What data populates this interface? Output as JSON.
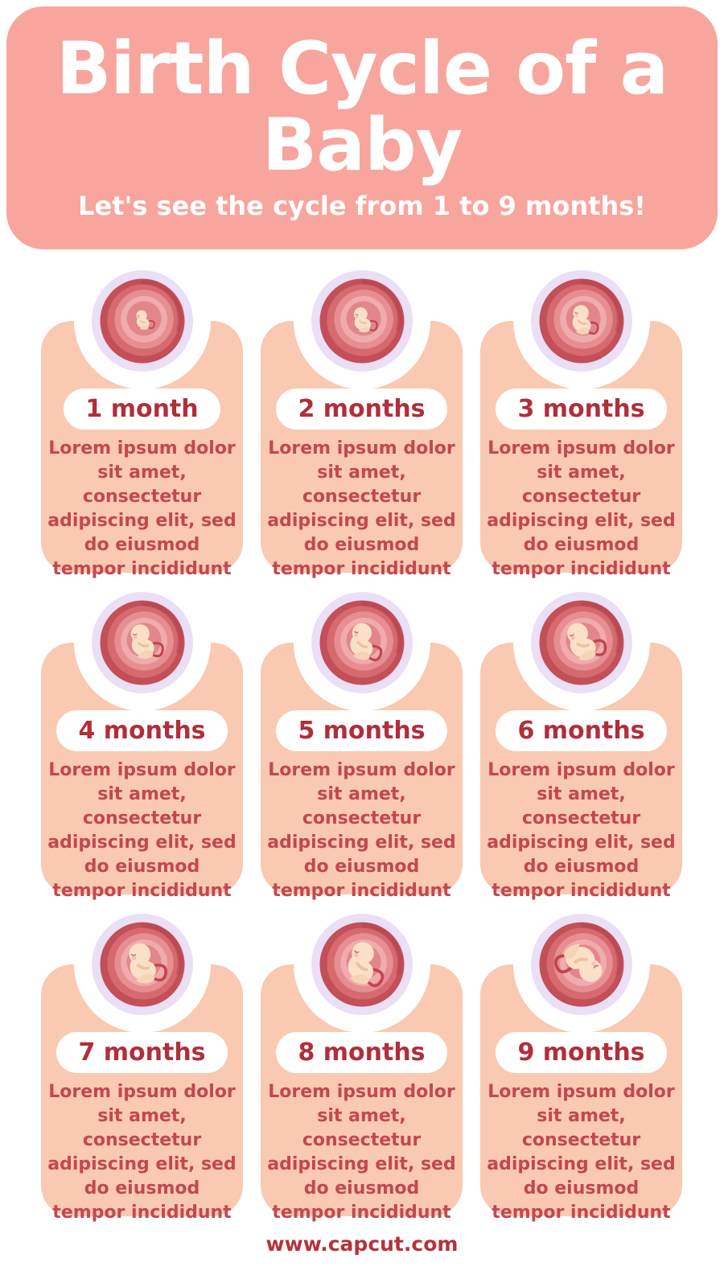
{
  "header": {
    "title": "Birth Cycle of a Baby",
    "subtitle": "Let's see the cycle from 1 to 9 months!"
  },
  "cards": [
    {
      "label": "1 month",
      "illustration": "embryo-in-womb-month-1",
      "description_lines": [
        "Lorem ipsum dolor",
        "sit amet,",
        "consectetur",
        "adipiscing elit, sed",
        "do eiusmod",
        "tempor incididunt"
      ]
    },
    {
      "label": "2 months",
      "illustration": "fetus-in-womb-month-2",
      "description_lines": [
        "Lorem ipsum dolor",
        "sit amet,",
        "consectetur",
        "adipiscing elit, sed",
        "do eiusmod",
        "tempor incididunt"
      ]
    },
    {
      "label": "3 months",
      "illustration": "fetus-in-womb-month-3",
      "description_lines": [
        "Lorem ipsum dolor",
        "sit amet,",
        "consectetur",
        "adipiscing elit, sed",
        "do eiusmod",
        "tempor incididunt"
      ]
    },
    {
      "label": "4 months",
      "illustration": "fetus-in-womb-month-4",
      "description_lines": [
        "Lorem ipsum dolor",
        "sit amet,",
        "consectetur",
        "adipiscing elit, sed",
        "do eiusmod",
        "tempor incididunt"
      ]
    },
    {
      "label": "5 months",
      "illustration": "fetus-in-womb-month-5",
      "description_lines": [
        "Lorem ipsum dolor",
        "sit amet,",
        "consectetur",
        "adipiscing elit, sed",
        "do eiusmod",
        "tempor incididunt"
      ]
    },
    {
      "label": "6 months",
      "illustration": "fetus-in-womb-month-6",
      "description_lines": [
        "Lorem ipsum dolor",
        "sit amet,",
        "consectetur",
        "adipiscing elit, sed",
        "do eiusmod",
        "tempor incididunt"
      ]
    },
    {
      "label": "7 months",
      "illustration": "fetus-in-womb-month-7",
      "description_lines": [
        "Lorem ipsum dolor",
        "sit amet,",
        "consectetur",
        "adipiscing elit, sed",
        "do eiusmod",
        "tempor incididunt"
      ]
    },
    {
      "label": "8 months",
      "illustration": "fetus-in-womb-month-8",
      "description_lines": [
        "Lorem ipsum dolor",
        "sit amet,",
        "consectetur",
        "adipiscing elit, sed",
        "do eiusmod",
        "tempor incididunt"
      ]
    },
    {
      "label": "9 months",
      "illustration": "fetus-in-womb-month-9",
      "description_lines": [
        "Lorem ipsum dolor",
        "sit amet,",
        "consectetur",
        "adipiscing elit, sed",
        "do eiusmod",
        "tempor incididunt"
      ]
    }
  ],
  "footer": {
    "website": "www.capcut.com"
  },
  "colors": {
    "header_bg": "#F8A59E",
    "title_text": "#FFFFFF",
    "card_bg": "#F9C9B2",
    "label_text": "#B12E3B",
    "body_text": "#C24850",
    "footer_text": "#B4333A",
    "womb_ring": "#EADFF4",
    "womb_red_outer": "#C34F59",
    "fetus_skin": "#FAE0C8"
  }
}
